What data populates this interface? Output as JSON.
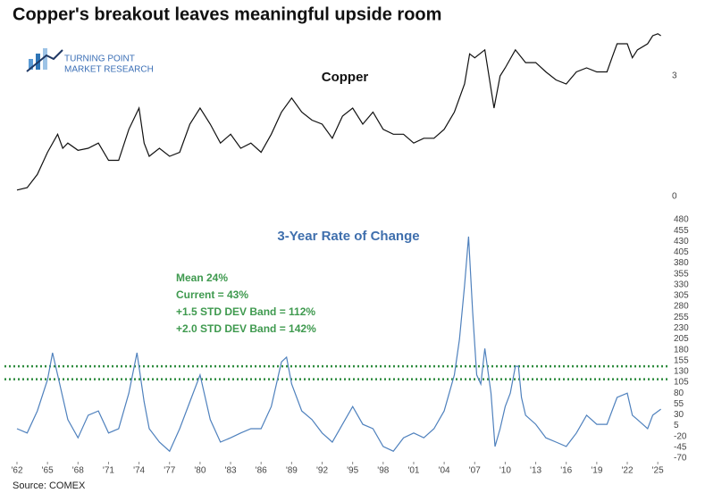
{
  "title": "Copper's breakout leaves meaningful upside room",
  "logo": [
    "TURNING POINT",
    "MARKET RESEARCH"
  ],
  "source": "Source: COMEX",
  "chart_data": [
    {
      "type": "line",
      "title": "Copper",
      "color": "#111111",
      "x": [
        1962,
        1963,
        1964,
        1965,
        1966,
        1966.5,
        1967,
        1968,
        1969,
        1970,
        1971,
        1972,
        1973,
        1974,
        1974.5,
        1975,
        1976,
        1977,
        1978,
        1979,
        1980,
        1981,
        1982,
        1983,
        1984,
        1985,
        1986,
        1987,
        1988,
        1989,
        1990,
        1991,
        1992,
        1993,
        1994,
        1995,
        1996,
        1997,
        1998,
        1999,
        2000,
        2001,
        2002,
        2003,
        2004,
        2005,
        2006,
        2006.5,
        2007,
        2008,
        2008.9,
        2009.5,
        2010,
        2011,
        2012,
        2013,
        2014,
        2015,
        2016,
        2017,
        2018,
        2019,
        2020,
        2020.5,
        2021,
        2022,
        2022.5,
        2023,
        2024,
        2024.5,
        2025,
        2025.3
      ],
      "values": [
        0.16,
        0.22,
        0.55,
        1.1,
        1.55,
        1.2,
        1.33,
        1.15,
        1.2,
        1.33,
        0.9,
        0.9,
        1.67,
        2.2,
        1.33,
        1.0,
        1.2,
        1.0,
        1.1,
        1.8,
        2.2,
        1.8,
        1.33,
        1.55,
        1.2,
        1.33,
        1.1,
        1.55,
        2.1,
        2.45,
        2.1,
        1.9,
        1.8,
        1.45,
        2.0,
        2.2,
        1.8,
        2.1,
        1.67,
        1.55,
        1.55,
        1.33,
        1.45,
        1.45,
        1.67,
        2.1,
        2.8,
        3.55,
        3.45,
        3.65,
        2.2,
        3.0,
        3.2,
        3.65,
        3.33,
        3.33,
        3.1,
        2.9,
        2.8,
        3.1,
        3.2,
        3.1,
        3.1,
        3.45,
        3.8,
        3.8,
        3.45,
        3.65,
        3.8,
        4.0,
        4.05,
        4.0
      ],
      "xlim": [
        1962,
        2025.6
      ],
      "ylim": [
        0,
        4.3
      ],
      "yticks": [
        0,
        3
      ]
    },
    {
      "type": "line",
      "title": "3-Year Rate of Change",
      "color": "#4f81bd",
      "x": [
        1962,
        1963,
        1964,
        1965,
        1965.5,
        1966,
        1967,
        1968,
        1969,
        1970,
        1971,
        1972,
        1973,
        1973.8,
        1974.5,
        1975,
        1976,
        1977,
        1978,
        1979,
        1980,
        1981,
        1982,
        1983,
        1984,
        1985,
        1986,
        1987,
        1988,
        1988.5,
        1989,
        1990,
        1991,
        1992,
        1993,
        1994,
        1995,
        1996,
        1997,
        1998,
        1999,
        2000,
        2001,
        2002,
        2003,
        2004,
        2005,
        2005.5,
        2006,
        2006.4,
        2006.8,
        2007.2,
        2007.6,
        2008,
        2008.6,
        2009,
        2009.5,
        2010,
        2010.5,
        2011,
        2011.3,
        2011.6,
        2012,
        2013,
        2014,
        2015,
        2016,
        2017,
        2018,
        2019,
        2020,
        2021,
        2022,
        2022.5,
        2023,
        2024,
        2024.5,
        2025.3
      ],
      "values": [
        -2,
        -12,
        39,
        111,
        173,
        122,
        19,
        -23,
        29,
        39,
        -12,
        -2,
        80,
        173,
        60,
        -2,
        -33,
        -54,
        -2,
        60,
        122,
        19,
        -33,
        -23,
        -12,
        -2,
        -2,
        49,
        152,
        163,
        101,
        39,
        19,
        -12,
        -33,
        8,
        49,
        8,
        -2,
        -43,
        -54,
        -23,
        -12,
        -23,
        -2,
        39,
        122,
        204,
        328,
        441,
        266,
        122,
        101,
        183,
        80,
        -43,
        -2,
        49,
        80,
        142,
        142,
        70,
        29,
        8,
        -23,
        -33,
        -43,
        -12,
        29,
        8,
        8,
        70,
        80,
        29,
        19,
        -2,
        29,
        43
      ],
      "xlim": [
        1962,
        2025.6
      ],
      "ylim": [
        -70,
        480
      ],
      "yticks": [
        -70,
        -45,
        -20,
        5,
        30,
        55,
        80,
        105,
        130,
        155,
        180,
        205,
        230,
        255,
        280,
        305,
        330,
        355,
        380,
        405,
        430,
        455,
        480
      ],
      "xticks": [
        {
          "value": 1962,
          "label": "'62"
        },
        {
          "value": 1965,
          "label": "'65"
        },
        {
          "value": 1968,
          "label": "'68"
        },
        {
          "value": 1971,
          "label": "'71"
        },
        {
          "value": 1974,
          "label": "'74"
        },
        {
          "value": 1977,
          "label": "'77"
        },
        {
          "value": 1980,
          "label": "'80"
        },
        {
          "value": 1983,
          "label": "'83"
        },
        {
          "value": 1986,
          "label": "'86"
        },
        {
          "value": 1989,
          "label": "'89"
        },
        {
          "value": 1992,
          "label": "'92"
        },
        {
          "value": 1995,
          "label": "'95"
        },
        {
          "value": 1998,
          "label": "'98"
        },
        {
          "value": 2001,
          "label": "'01"
        },
        {
          "value": 2004,
          "label": "'04"
        },
        {
          "value": 2007,
          "label": "'07"
        },
        {
          "value": 2010,
          "label": "'10"
        },
        {
          "value": 2013,
          "label": "'13"
        },
        {
          "value": 2016,
          "label": "'16"
        },
        {
          "value": 2019,
          "label": "'19"
        },
        {
          "value": 2022,
          "label": "'22"
        },
        {
          "value": 2025,
          "label": "'25"
        }
      ],
      "reference_lines": [
        {
          "value": 112,
          "color": "#2e8b3e"
        },
        {
          "value": 142,
          "color": "#2e8b3e"
        }
      ],
      "annotations": [
        "Mean 24%",
        "Current = 43%",
        "+1.5 STD DEV Band = 112%",
        "+2.0 STD DEV Band = 142%"
      ]
    }
  ]
}
